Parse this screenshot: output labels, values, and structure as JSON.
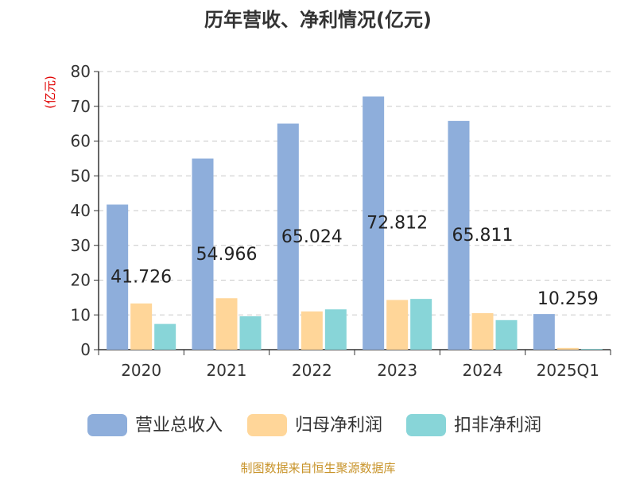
{
  "chart_data": {
    "type": "bar",
    "title": "历年营收、净利情况(亿元)",
    "ylabel": "(亿元)",
    "ylim": [
      0,
      80
    ],
    "yticks": [
      0,
      10,
      20,
      30,
      40,
      50,
      60,
      70,
      80
    ],
    "grid": true,
    "legend_position": "bottom",
    "categories": [
      "2020",
      "2021",
      "2022",
      "2023",
      "2024",
      "2025Q1"
    ],
    "series": [
      {
        "name": "营业总收入",
        "color": "#8eaedb",
        "values": [
          41.726,
          54.966,
          65.024,
          72.812,
          65.811,
          10.259
        ],
        "data_labels": [
          "41.726",
          "54.966",
          "65.024",
          "72.812",
          "65.811",
          "10.259"
        ]
      },
      {
        "name": "归母净利润",
        "color": "#ffd699",
        "values": [
          13.3,
          14.8,
          11.0,
          14.3,
          10.5,
          0.5
        ]
      },
      {
        "name": "扣非净利润",
        "color": "#88d5d8",
        "values": [
          7.4,
          9.6,
          11.6,
          14.6,
          8.5,
          0.2
        ]
      }
    ]
  },
  "source_note": "制图数据来自恒生聚源数据库"
}
